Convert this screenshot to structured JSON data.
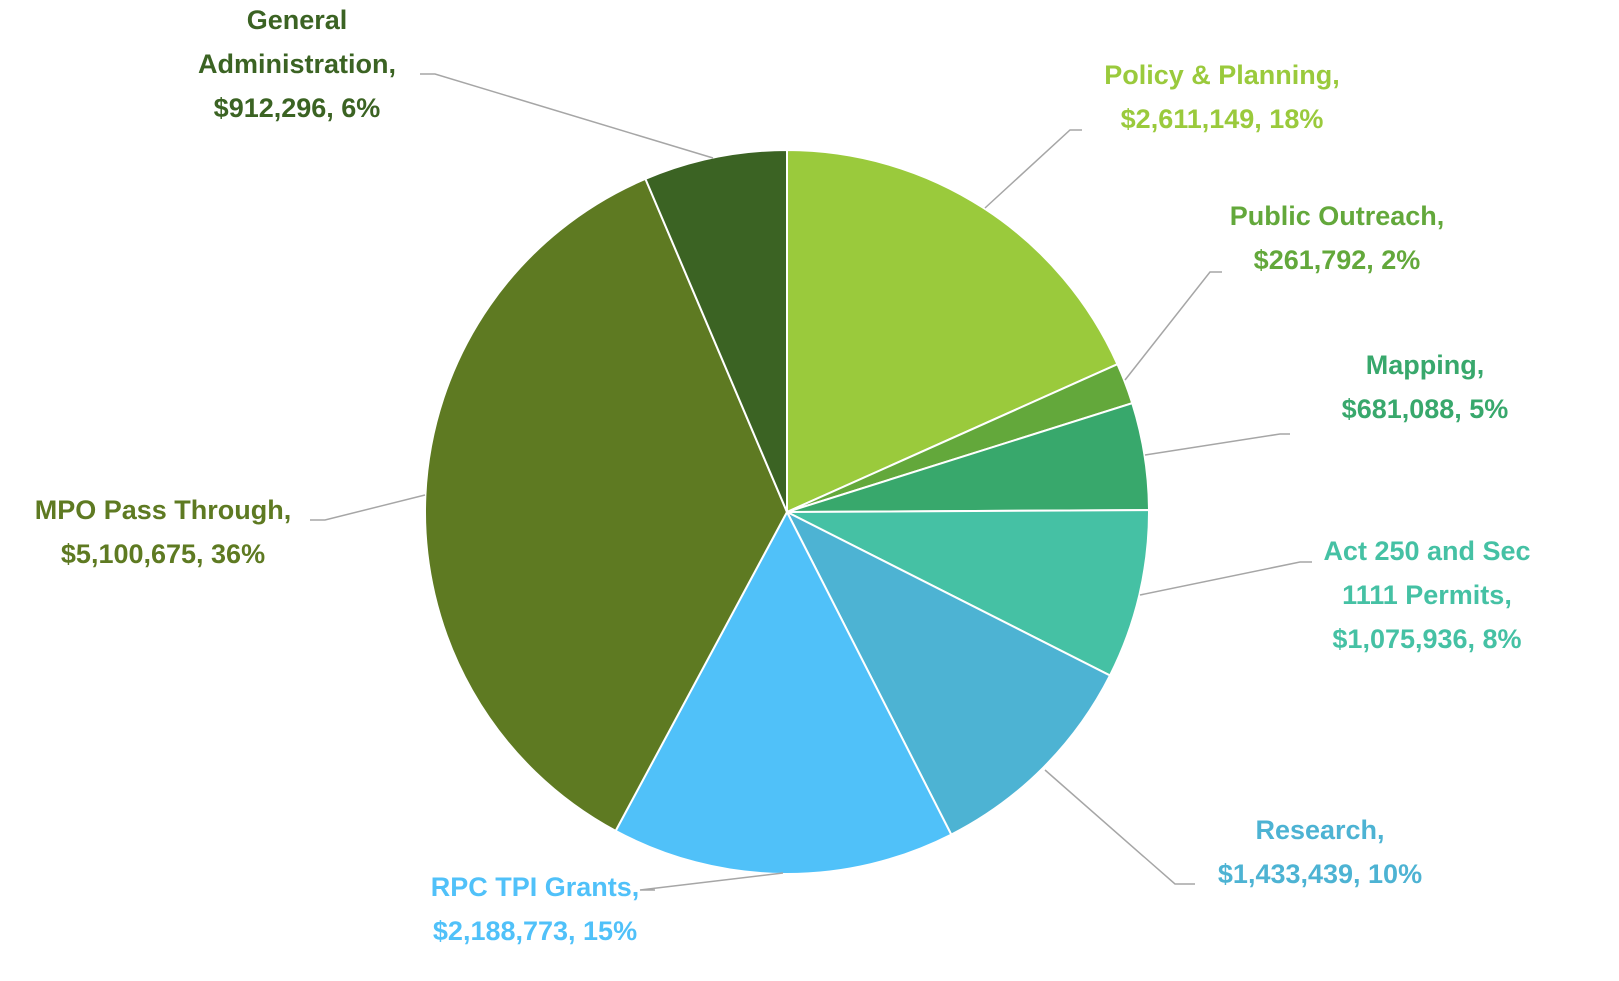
{
  "chart_data": {
    "type": "pie",
    "categories": [
      "Policy & Planning,",
      "Public Outreach,",
      "Mapping,",
      "Act 250 and Sec 1111 Permits,",
      "Research,",
      "RPC TPI Grants,",
      "MPO Pass Through,",
      "General Administration,"
    ],
    "values": [
      2611149,
      261792,
      681088,
      1075936,
      1433439,
      2188773,
      5100675,
      912296
    ],
    "value_labels": [
      "$2,611,149, 18%",
      "$261,792, 2%",
      "$681,088, 5%",
      "$1,075,936, 8%",
      "$1,433,439, 10%",
      "$2,188,773, 15%",
      "$5,100,675, 36%",
      "$912,296, 6%"
    ],
    "colors": [
      "#9aca3c",
      "#63a83b",
      "#38a86c",
      "#45c1a4",
      "#4db3d3",
      "#50c1f9",
      "#5e7a22",
      "#3b6323"
    ]
  }
}
